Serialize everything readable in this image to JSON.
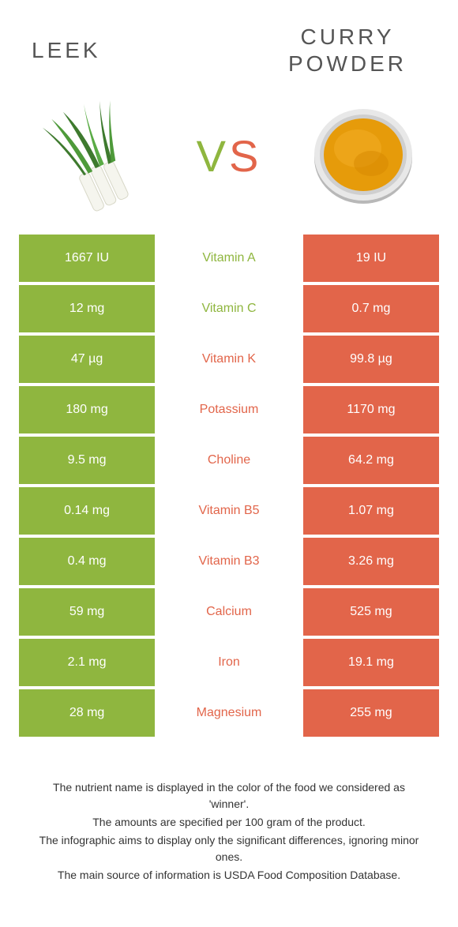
{
  "titles": {
    "left": "Leek",
    "right": "Curry Powder"
  },
  "vs": {
    "v": "V",
    "s": "S"
  },
  "colors": {
    "leek": "#8fb63f",
    "curry": "#e2654a",
    "leek_dark": "#7aa030",
    "curry_dark": "#d0543a"
  },
  "rows": [
    {
      "left": "1667 IU",
      "label": "Vitamin A",
      "right": "19 IU",
      "winner": "leek"
    },
    {
      "left": "12 mg",
      "label": "Vitamin C",
      "right": "0.7 mg",
      "winner": "leek"
    },
    {
      "left": "47 µg",
      "label": "Vitamin K",
      "right": "99.8 µg",
      "winner": "curry"
    },
    {
      "left": "180 mg",
      "label": "Potassium",
      "right": "1170 mg",
      "winner": "curry"
    },
    {
      "left": "9.5 mg",
      "label": "Choline",
      "right": "64.2 mg",
      "winner": "curry"
    },
    {
      "left": "0.14 mg",
      "label": "Vitamin B5",
      "right": "1.07 mg",
      "winner": "curry"
    },
    {
      "left": "0.4 mg",
      "label": "Vitamin B3",
      "right": "3.26 mg",
      "winner": "curry"
    },
    {
      "left": "59 mg",
      "label": "Calcium",
      "right": "525 mg",
      "winner": "curry"
    },
    {
      "left": "2.1 mg",
      "label": "Iron",
      "right": "19.1 mg",
      "winner": "curry"
    },
    {
      "left": "28 mg",
      "label": "Magnesium",
      "right": "255 mg",
      "winner": "curry"
    }
  ],
  "footer": [
    "The nutrient name is displayed in the color of the food we considered as 'winner'.",
    "The amounts are specified per 100 gram of the product.",
    "The infographic aims to display only the significant differences, ignoring minor ones.",
    "The main source of information is USDA Food Composition Database."
  ]
}
